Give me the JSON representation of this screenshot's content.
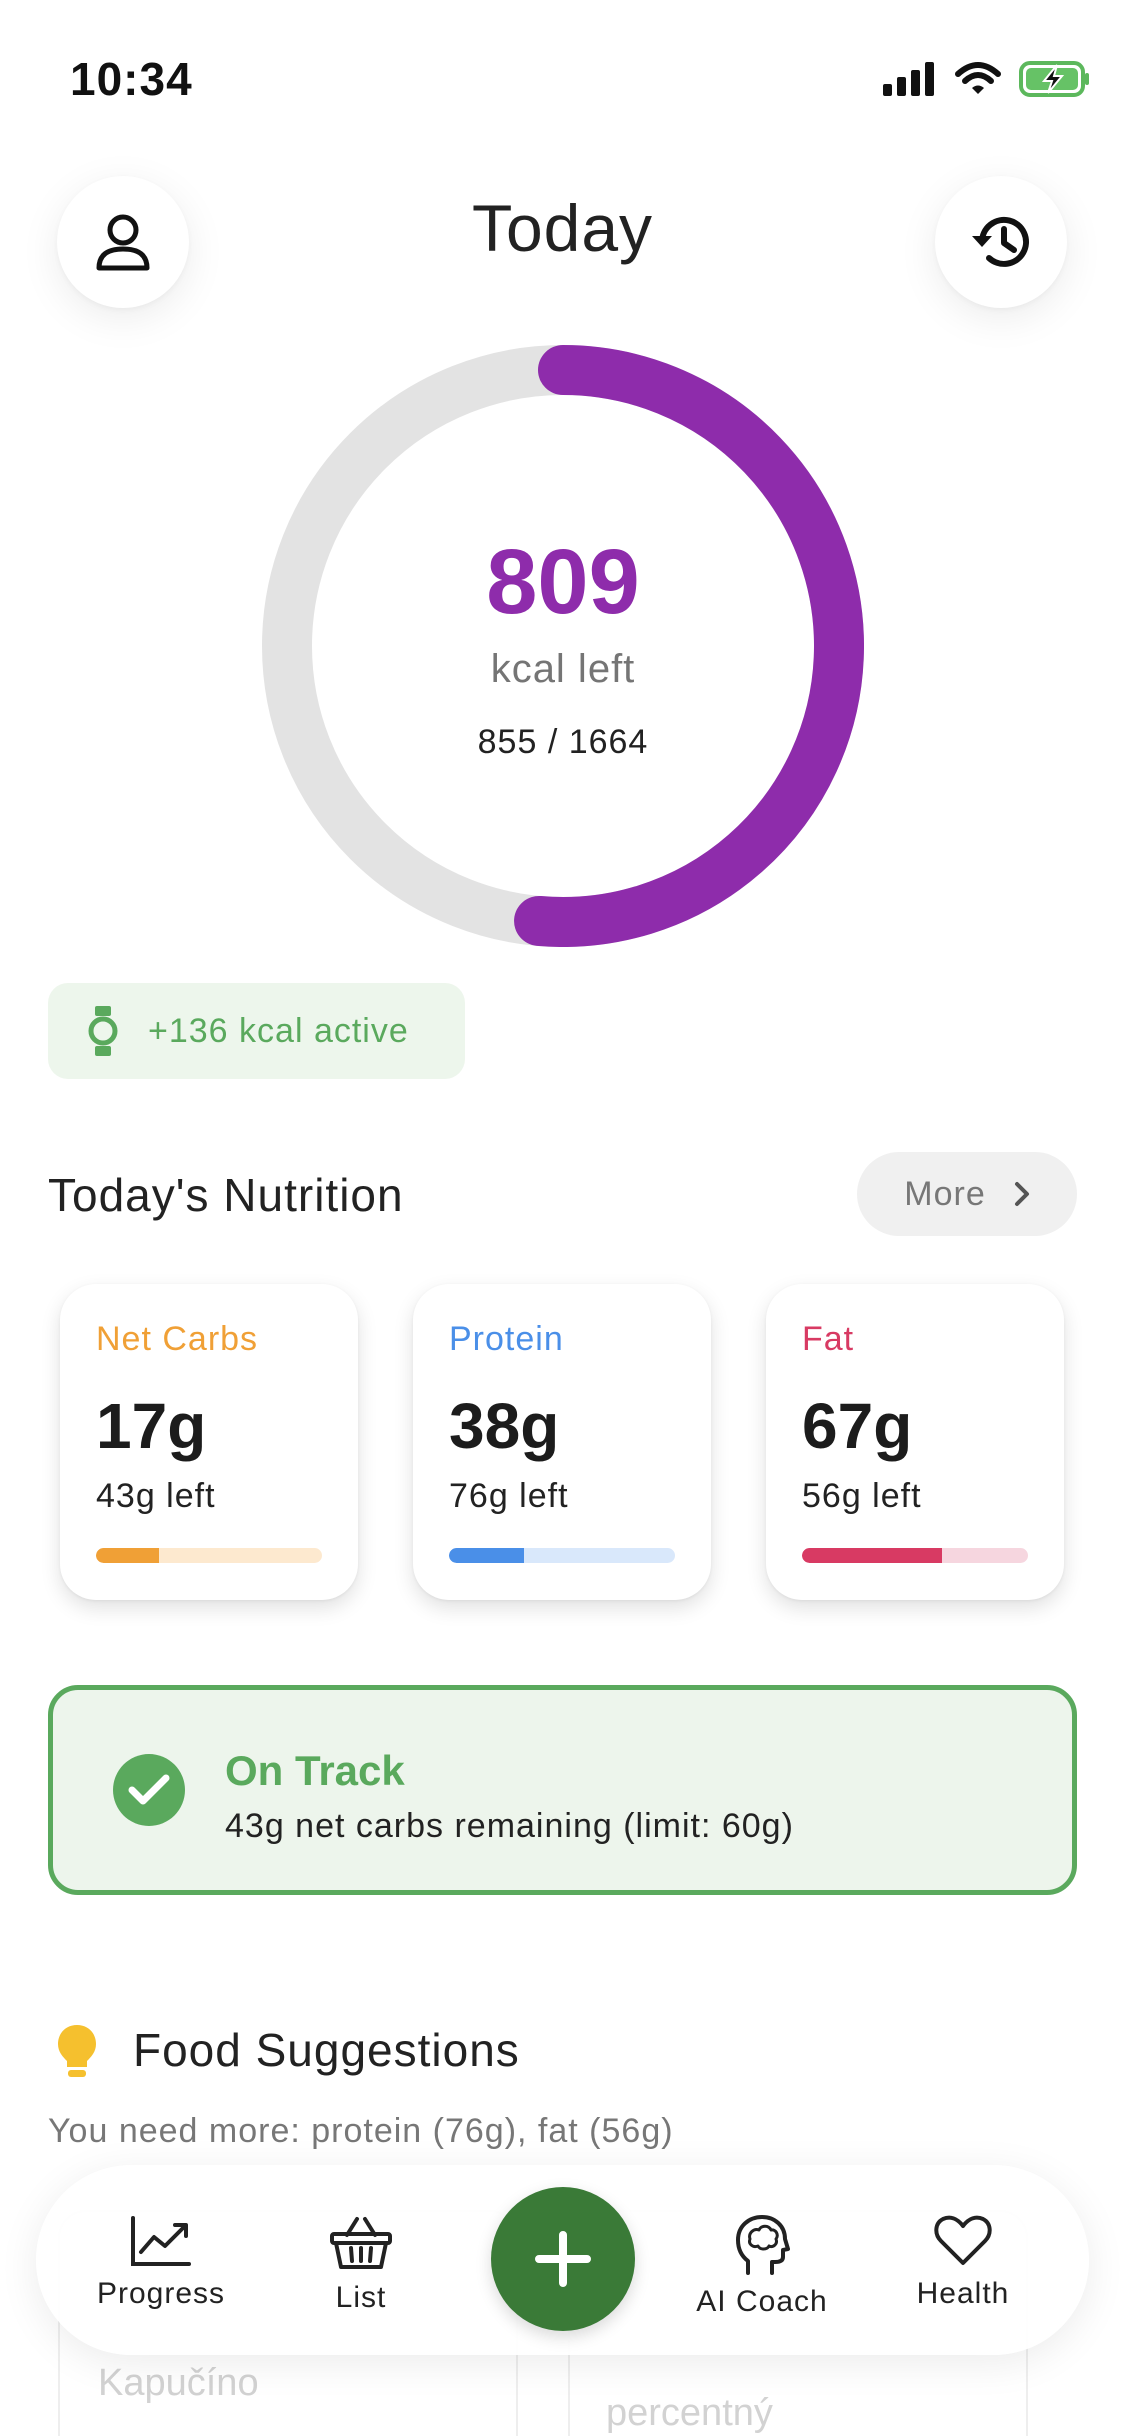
{
  "status_bar": {
    "time": "10:34"
  },
  "header": {
    "title": "Today"
  },
  "calories": {
    "left_value": "809",
    "left_label": "kcal left",
    "ratio": "855 / 1664",
    "consumed": 855,
    "goal": 1664,
    "accent": "#8e2cab",
    "track": "#e3e3e3"
  },
  "active": {
    "text": "+136 kcal active"
  },
  "nutrition": {
    "title": "Today's Nutrition",
    "more_label": "More",
    "macros": [
      {
        "name": "Net Carbs",
        "value": "17g",
        "left": "43g left",
        "progress": 0.28,
        "color": "#f0a036",
        "track": "#fde9cf"
      },
      {
        "name": "Protein",
        "value": "38g",
        "left": "76g left",
        "progress": 0.33,
        "color": "#4a8fe8",
        "track": "#d9e8fb"
      },
      {
        "name": "Fat",
        "value": "67g",
        "left": "56g left",
        "progress": 0.62,
        "color": "#d83a63",
        "track": "#f6d6df"
      }
    ]
  },
  "on_track": {
    "title": "On Track",
    "subtitle": "43g net carbs remaining (limit: 60g)"
  },
  "food_suggestions": {
    "title": "Food Suggestions",
    "subtitle": "You need more: protein (76g), fat (56g)",
    "cards": [
      {
        "name": "Kapučíno"
      },
      {
        "name": "percentný"
      }
    ]
  },
  "tab_bar": {
    "items": [
      {
        "label": "Progress",
        "icon": "chart-line-icon"
      },
      {
        "label": "List",
        "icon": "basket-icon"
      },
      {
        "label": "AI Coach",
        "icon": "brain-head-icon"
      },
      {
        "label": "Health",
        "icon": "heart-icon"
      }
    ],
    "add_icon": "plus-icon"
  }
}
